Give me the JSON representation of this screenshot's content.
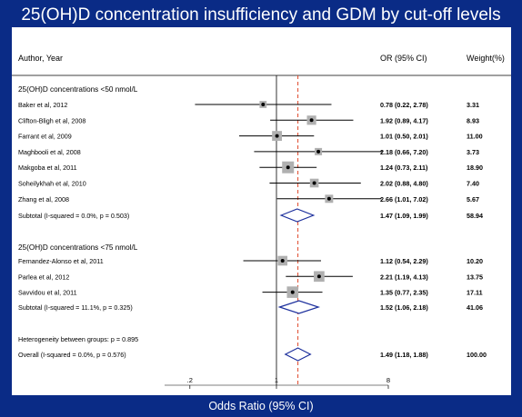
{
  "chart_data": {
    "type": "forest",
    "title": "25(OH)D concentration insufficiency and GDM by cut-off levels",
    "xlabel": "Odds Ratio (95% CI)",
    "x_scale": "log",
    "xlim": [
      0.125,
      8
    ],
    "x_ticks": [
      {
        "value": 0.2,
        "label": ".2"
      },
      {
        "value": 1,
        "label": "1"
      },
      {
        "value": 8,
        "label": "8"
      }
    ],
    "null_value": 1,
    "overall_estimate": 1.49,
    "columns": {
      "study": "Author, Year",
      "or": "OR (95% CI)",
      "weight": "Weight(%)"
    },
    "groups": [
      {
        "name": "25(OH)D concentrations <50 nmol/L",
        "studies": [
          {
            "label": "Baker et al, 2012",
            "or": 0.78,
            "lo": 0.22,
            "hi": 2.78,
            "or_text": "0.78 (0.22, 2.78)",
            "weight": 3.31,
            "weight_text": "3.31"
          },
          {
            "label": "Clifton-Bligh et al, 2008",
            "or": 1.92,
            "lo": 0.89,
            "hi": 4.17,
            "or_text": "1.92 (0.89, 4.17)",
            "weight": 8.93,
            "weight_text": "8.93"
          },
          {
            "label": "Farrant et al, 2009",
            "or": 1.01,
            "lo": 0.5,
            "hi": 2.01,
            "or_text": "1.01 (0.50, 2.01)",
            "weight": 11.0,
            "weight_text": "11.00"
          },
          {
            "label": "Maghbooli et al, 2008",
            "or": 2.18,
            "lo": 0.66,
            "hi": 7.2,
            "or_text": "2.18 (0.66, 7.20)",
            "weight": 3.73,
            "weight_text": "3.73"
          },
          {
            "label": "Makgoba et al, 2011",
            "or": 1.24,
            "lo": 0.73,
            "hi": 2.11,
            "or_text": "1.24 (0.73, 2.11)",
            "weight": 18.9,
            "weight_text": "18.90"
          },
          {
            "label": "Soheilykhah et al, 2010",
            "or": 2.02,
            "lo": 0.88,
            "hi": 4.8,
            "or_text": "2.02 (0.88, 4.80)",
            "weight": 7.4,
            "weight_text": "7.40"
          },
          {
            "label": "Zhang et al, 2008",
            "or": 2.66,
            "lo": 1.01,
            "hi": 7.02,
            "or_text": "2.66 (1.01, 7.02)",
            "weight": 5.67,
            "weight_text": "5.67"
          }
        ],
        "subtotal": {
          "label": "Subtotal  (I-squared = 0.0%, p = 0.503)",
          "or": 1.47,
          "lo": 1.09,
          "hi": 1.99,
          "or_text": "1.47 (1.09, 1.99)",
          "weight": 58.94,
          "weight_text": "58.94"
        }
      },
      {
        "name": "25(OH)D concentrations <75 nmol/L",
        "studies": [
          {
            "label": "Fernandez-Alonso et al, 2011",
            "or": 1.12,
            "lo": 0.54,
            "hi": 2.29,
            "or_text": "1.12 (0.54, 2.29)",
            "weight": 10.2,
            "weight_text": "10.20"
          },
          {
            "label": "Parlea et al, 2012",
            "or": 2.21,
            "lo": 1.19,
            "hi": 4.13,
            "or_text": "2.21 (1.19, 4.13)",
            "weight": 13.75,
            "weight_text": "13.75"
          },
          {
            "label": "Savvidou et al, 2011",
            "or": 1.35,
            "lo": 0.77,
            "hi": 2.35,
            "or_text": "1.35 (0.77, 2.35)",
            "weight": 17.11,
            "weight_text": "17.11"
          }
        ],
        "subtotal": {
          "label": "Subtotal  (I-squared = 11.1%, p = 0.325)",
          "or": 1.52,
          "lo": 1.06,
          "hi": 2.18,
          "or_text": "1.52 (1.06, 2.18)",
          "weight": 41.06,
          "weight_text": "41.06"
        }
      }
    ],
    "heterogeneity": "Heterogeneity between groups: p = 0.895",
    "overall": {
      "label": "Overall  (I-squared = 0.0%, p = 0.576)",
      "or": 1.49,
      "lo": 1.18,
      "hi": 1.88,
      "or_text": "1.49 (1.18, 1.88)",
      "weight": 100,
      "weight_text": "100.00"
    },
    "colors": {
      "background": "#0a2b86",
      "panel": "#ffffff",
      "weight_box": "#b0b0b0",
      "diamond": "#1c2f9c",
      "overall_line": "#e0482a"
    }
  }
}
